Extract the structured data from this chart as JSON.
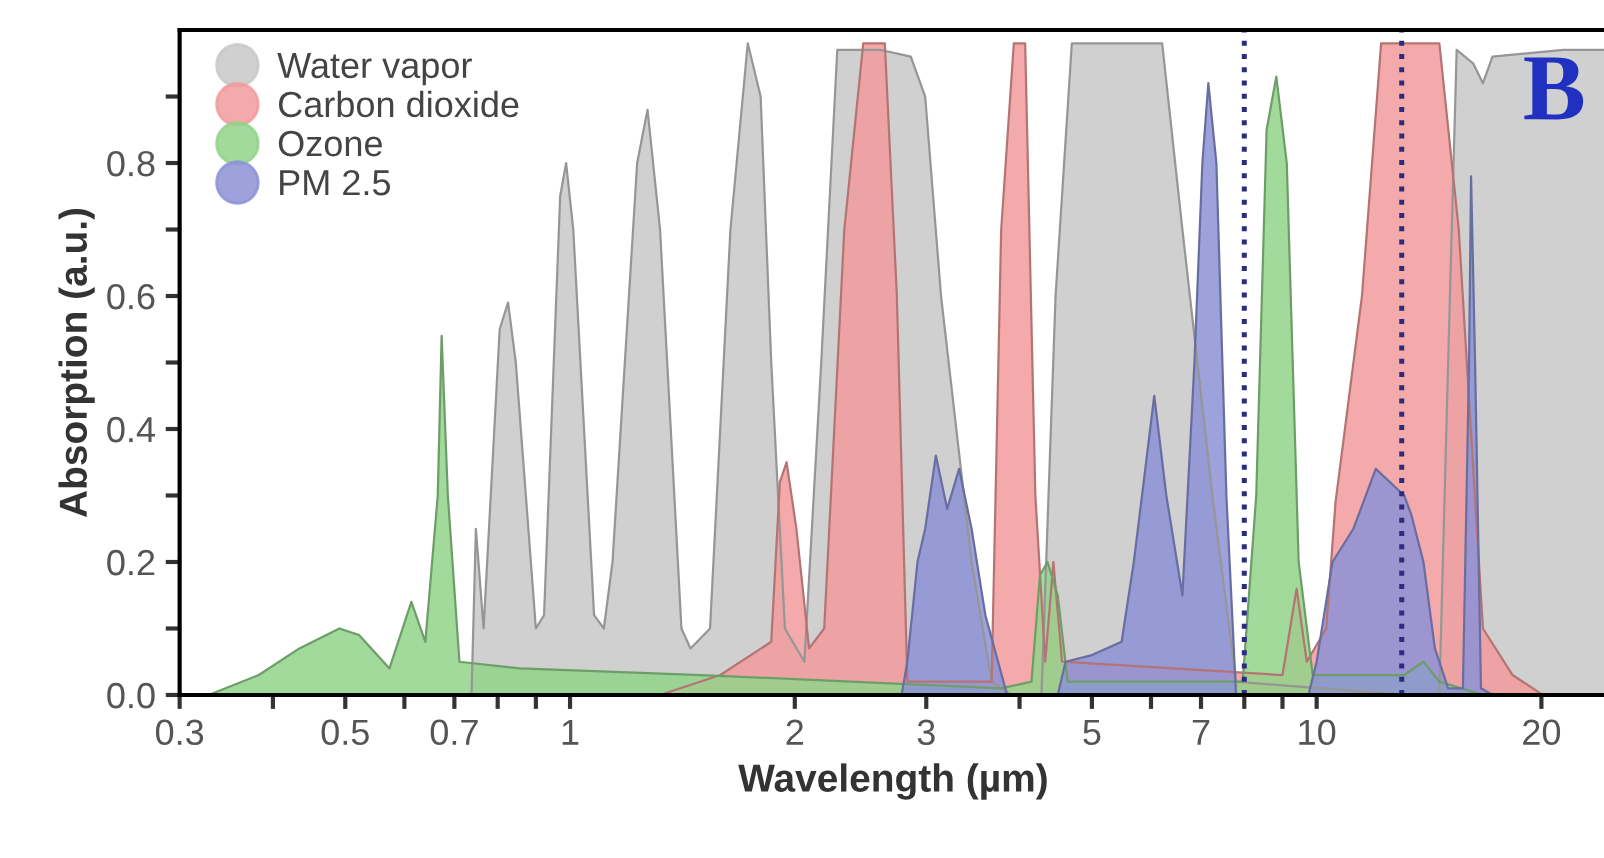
{
  "chart_data": {
    "type": "area",
    "xlabel": "Wavelength (µm)",
    "ylabel": "Absorption (a.u.)",
    "log": "x",
    "xlim": [
      0.3,
      24.5
    ],
    "ylim": [
      0,
      1.0
    ],
    "xticks": [
      0.3,
      {
        "value": 0.4,
        "label": null
      },
      0.5,
      {
        "value": 0.6,
        "label": null
      },
      0.7,
      {
        "value": 0.8,
        "label": null
      },
      {
        "value": 0.9,
        "label": null
      },
      1,
      2,
      3,
      {
        "value": 4,
        "label": null
      },
      5,
      {
        "value": 6,
        "label": null
      },
      7,
      {
        "value": 8,
        "label": null
      },
      {
        "value": 9,
        "label": null
      },
      10,
      20
    ],
    "yticks": [
      {
        "value": 0,
        "label": "0.0"
      },
      {
        "value": 0.1,
        "label": null
      },
      0.2,
      {
        "value": 0.3,
        "label": null
      },
      0.4,
      {
        "value": 0.5,
        "label": null
      },
      0.6,
      {
        "value": 0.7,
        "label": null
      },
      0.8,
      {
        "value": 0.9,
        "label": null
      }
    ],
    "grid": false,
    "legend": "top left",
    "annotations": [
      "B"
    ],
    "ref_lines": [
      {
        "axis": "x",
        "value": 8,
        "label": null,
        "color": "#2b2b80",
        "line_style": "dotted"
      },
      {
        "axis": "x",
        "value": 13,
        "label": null,
        "color": "#2b2b80",
        "line_style": "dotted"
      }
    ],
    "series": [
      {
        "name": "Water vapor",
        "color": "#c8c8c8",
        "x": [
          0.738,
          0.748,
          0.766,
          0.805,
          0.826,
          0.846,
          0.9,
          0.923,
          0.97,
          0.988,
          1.01,
          1.077,
          1.11,
          1.14,
          1.23,
          1.27,
          1.32,
          1.41,
          1.45,
          1.54,
          1.64,
          1.73,
          1.8,
          1.86,
          1.94,
          2.06,
          2.17,
          2.28,
          2.61,
          2.86,
          2.99,
          3.14,
          3.45,
          3.67,
          3.9,
          4.28,
          4.47,
          4.7,
          6.21,
          6.61,
          7.25,
          7.8,
          13.1,
          14.6,
          15.0,
          15.4,
          16.2,
          16.7,
          17.2,
          21.4,
          24.5
        ],
        "values": [
          0,
          0.25,
          0.1,
          0.55,
          0.59,
          0.5,
          0.1,
          0.12,
          0.75,
          0.8,
          0.7,
          0.12,
          0.1,
          0.2,
          0.8,
          0.88,
          0.7,
          0.1,
          0.07,
          0.1,
          0.7,
          0.98,
          0.9,
          0.5,
          0.1,
          0.05,
          0.5,
          0.97,
          0.97,
          0.96,
          0.9,
          0.6,
          0.2,
          0.02,
          0,
          0,
          0.6,
          0.98,
          0.98,
          0.7,
          0.3,
          0.02,
          0,
          0,
          0.5,
          0.97,
          0.95,
          0.92,
          0.96,
          0.97,
          0.97
        ]
      },
      {
        "name": "Carbon dioxide",
        "color": "#f29b9b",
        "x": [
          1.32,
          1.59,
          1.86,
          1.91,
          1.95,
          2.01,
          2.09,
          2.19,
          2.33,
          2.47,
          2.64,
          2.74,
          2.83,
          3.67,
          3.78,
          3.93,
          4.07,
          4.2,
          4.33,
          4.44,
          4.56,
          9.0,
          9.4,
          9.7,
          10.3,
          10.6,
          11.5,
          12.2,
          14.6,
          15.5,
          16.7,
          18.3,
          20.1
        ],
        "values": [
          0,
          0.03,
          0.08,
          0.32,
          0.35,
          0.25,
          0.07,
          0.1,
          0.7,
          0.98,
          0.98,
          0.6,
          0.02,
          0.02,
          0.7,
          0.98,
          0.98,
          0.3,
          0.05,
          0.2,
          0.05,
          0.03,
          0.16,
          0.05,
          0.1,
          0.29,
          0.6,
          0.98,
          0.98,
          0.7,
          0.1,
          0.03,
          0
        ]
      },
      {
        "name": "Ozone",
        "color": "#92d38a",
        "x": [
          0.328,
          0.383,
          0.434,
          0.491,
          0.522,
          0.573,
          0.613,
          0.64,
          0.665,
          0.673,
          0.686,
          0.711,
          0.857,
          1.5,
          3.78,
          4.15,
          4.26,
          4.36,
          4.5,
          4.64,
          7.96,
          8.3,
          8.57,
          8.83,
          9.12,
          9.46,
          9.88,
          13.1,
          13.9,
          14.6,
          16.7
        ],
        "values": [
          0,
          0.03,
          0.07,
          0.1,
          0.09,
          0.04,
          0.14,
          0.08,
          0.3,
          0.54,
          0.3,
          0.05,
          0.04,
          0.03,
          0.01,
          0.02,
          0.18,
          0.2,
          0.15,
          0.02,
          0.02,
          0.3,
          0.85,
          0.93,
          0.8,
          0.2,
          0.03,
          0.03,
          0.05,
          0.02,
          0
        ]
      },
      {
        "name": "PM 2.5",
        "color": "#8c92d6",
        "x": [
          2.78,
          2.83,
          2.92,
          2.99,
          3.09,
          3.2,
          3.32,
          3.45,
          3.6,
          3.85,
          4.5,
          4.61,
          5.0,
          5.48,
          5.69,
          5.91,
          6.06,
          6.29,
          6.61,
          6.86,
          7.03,
          7.16,
          7.34,
          7.57,
          7.8,
          9.75,
          10.0,
          10.5,
          11.2,
          12.0,
          13.1,
          13.4,
          13.9,
          14.4,
          15.0,
          15.7,
          16.0,
          16.1,
          16.3,
          16.6,
          17.2
        ],
        "values": [
          0,
          0.05,
          0.2,
          0.25,
          0.36,
          0.28,
          0.34,
          0.25,
          0.12,
          0,
          0,
          0.05,
          0.06,
          0.08,
          0.2,
          0.35,
          0.45,
          0.3,
          0.15,
          0.5,
          0.8,
          0.92,
          0.8,
          0.3,
          0,
          0,
          0.05,
          0.2,
          0.25,
          0.34,
          0.3,
          0.27,
          0.2,
          0.07,
          0.01,
          0.01,
          0.5,
          0.78,
          0.5,
          0.01,
          0
        ]
      }
    ]
  }
}
